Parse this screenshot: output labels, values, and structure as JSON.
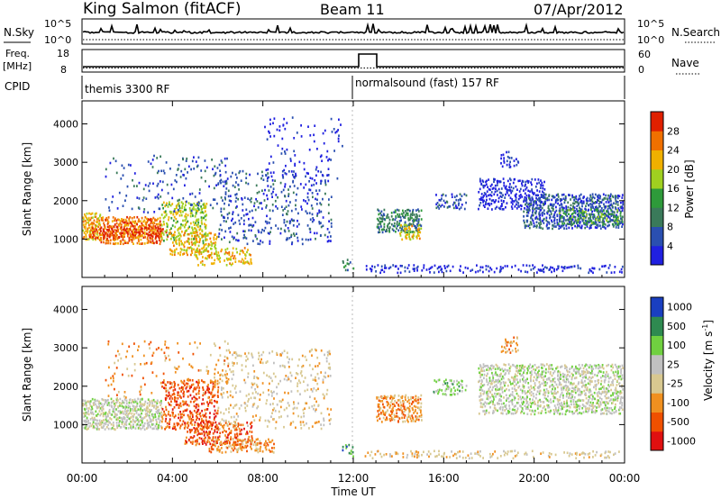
{
  "header": {
    "station": "King Salmon (fitACF)",
    "beam": "Beam 11",
    "date": "07/Apr/2012"
  },
  "nsky_panel": {
    "left_label": "N.Sky",
    "right_label": "N.Search",
    "left_ticks": [
      "10^5",
      "10^0"
    ],
    "right_ticks": [
      "10^5",
      "10^0"
    ]
  },
  "freq_panel": {
    "left_label_1": "Freq.",
    "left_label_2": "[MHz]",
    "right_label": "Nave",
    "left_ticks": [
      "18",
      "8"
    ],
    "right_ticks": [
      "60",
      "0"
    ]
  },
  "cpid_panel": {
    "label": "CPID",
    "segments": [
      {
        "name": "themis 3300 RF",
        "start_hour": 0,
        "end_hour": 12
      },
      {
        "name": "normalsound (fast) 157 RF",
        "start_hour": 12,
        "end_hour": 24
      }
    ]
  },
  "colors": {
    "power": [
      "#2020e0",
      "#2a4fb0",
      "#3a7a5a",
      "#2e9a3a",
      "#a0d020",
      "#f0b000",
      "#f07000",
      "#e02000"
    ],
    "velocity": [
      "#e01010",
      "#f05000",
      "#f09020",
      "#d8c890",
      "#c0c0c0",
      "#70d040",
      "#2e8a50",
      "#1a3fc0"
    ]
  },
  "chart_data": [
    {
      "type": "heatmap",
      "name": "power",
      "x_unit": "hours UT",
      "xlim": [
        0,
        24
      ],
      "ylim": [
        0,
        4600
      ],
      "ylabel": "Slant Range [km]",
      "yticks": [
        "1000",
        "2000",
        "3000",
        "4000"
      ],
      "colorbar": {
        "label": "Power [dB]",
        "ticks": [
          "28",
          "24",
          "20",
          "16",
          "12",
          "8",
          "4"
        ]
      },
      "scatter_regions": [
        {
          "t0": 0.0,
          "t1": 0.8,
          "r0": 1000,
          "r1": 1700,
          "level": 5,
          "density": 0.95
        },
        {
          "t0": 0.8,
          "t1": 3.5,
          "r0": 900,
          "r1": 1600,
          "level": 6,
          "density": 0.9
        },
        {
          "t0": 0.3,
          "t1": 3.8,
          "r0": 1050,
          "r1": 1350,
          "level": 7,
          "density": 0.6
        },
        {
          "t0": 3.5,
          "t1": 5.5,
          "r0": 900,
          "r1": 2000,
          "level": 4,
          "density": 0.6
        },
        {
          "t0": 3.8,
          "t1": 6.0,
          "r0": 600,
          "r1": 1200,
          "level": 5,
          "density": 0.55
        },
        {
          "t0": 5.0,
          "t1": 7.5,
          "r0": 350,
          "r1": 800,
          "level": 5,
          "density": 0.55
        },
        {
          "t0": 6.0,
          "t1": 11.0,
          "r0": 900,
          "r1": 2800,
          "level": 1,
          "density": 0.2
        },
        {
          "t0": 1.0,
          "t1": 6.5,
          "r0": 1700,
          "r1": 3200,
          "level": 1,
          "density": 0.12
        },
        {
          "t0": 8.0,
          "t1": 11.5,
          "r0": 2400,
          "r1": 4200,
          "level": 0,
          "density": 0.08
        },
        {
          "t0": 11.5,
          "t1": 12.0,
          "r0": 200,
          "r1": 500,
          "level": 2,
          "density": 0.5
        },
        {
          "t0": 13.0,
          "t1": 15.0,
          "r0": 1200,
          "r1": 1800,
          "level": 2,
          "density": 0.7
        },
        {
          "t0": 14.0,
          "t1": 15.0,
          "r0": 1000,
          "r1": 1400,
          "level": 5,
          "density": 0.5
        },
        {
          "t0": 15.5,
          "t1": 17.0,
          "r0": 1800,
          "r1": 2200,
          "level": 1,
          "density": 0.4
        },
        {
          "t0": 17.5,
          "t1": 20.5,
          "r0": 1800,
          "r1": 2600,
          "level": 0,
          "density": 0.55
        },
        {
          "t0": 19.5,
          "t1": 23.9,
          "r0": 1300,
          "r1": 2200,
          "level": 1,
          "density": 0.8
        },
        {
          "t0": 21.0,
          "t1": 23.9,
          "r0": 1400,
          "r1": 1800,
          "level": 3,
          "density": 0.5
        },
        {
          "t0": 12.5,
          "t1": 23.9,
          "r0": 150,
          "r1": 350,
          "level": 0,
          "density": 0.3
        },
        {
          "t0": 18.5,
          "t1": 19.3,
          "r0": 2900,
          "r1": 3300,
          "level": 0,
          "density": 0.4
        }
      ]
    },
    {
      "type": "heatmap",
      "name": "velocity",
      "x_unit": "hours UT",
      "xlim": [
        0,
        24
      ],
      "ylim": [
        0,
        4600
      ],
      "ylabel": "Slant Range [km]",
      "xlabel": "Time UT",
      "xticks": [
        "00:00",
        "04:00",
        "08:00",
        "12:00",
        "16:00",
        "20:00",
        "00:00"
      ],
      "yticks": [
        "1000",
        "2000",
        "3000",
        "4000"
      ],
      "colorbar": {
        "label": "Velocity [m s",
        "label_sup": "-1",
        "label_end": "]",
        "ticks": [
          "1000",
          "500",
          "100",
          "25",
          "-25",
          "-100",
          "-500",
          "-1000"
        ]
      },
      "scatter_regions": [
        {
          "t0": 0.0,
          "t1": 3.5,
          "r0": 900,
          "r1": 1700,
          "level": 4,
          "density": 0.9
        },
        {
          "t0": 3.5,
          "t1": 6.0,
          "r0": 900,
          "r1": 2200,
          "level": 1,
          "density": 0.55
        },
        {
          "t0": 4.5,
          "t1": 7.5,
          "r0": 500,
          "r1": 1100,
          "level": 1,
          "density": 0.55
        },
        {
          "t0": 5.5,
          "t1": 8.5,
          "r0": 300,
          "r1": 650,
          "level": 2,
          "density": 0.6
        },
        {
          "t0": 6.0,
          "t1": 11.0,
          "r0": 900,
          "r1": 3000,
          "level": 3,
          "density": 0.18
        },
        {
          "t0": 1.0,
          "t1": 6.5,
          "r0": 1700,
          "r1": 3200,
          "level": 2,
          "density": 0.1
        },
        {
          "t0": 11.5,
          "t1": 12.0,
          "r0": 200,
          "r1": 500,
          "level": 6,
          "density": 0.5
        },
        {
          "t0": 13.0,
          "t1": 15.0,
          "r0": 1100,
          "r1": 1800,
          "level": 2,
          "density": 0.75
        },
        {
          "t0": 15.5,
          "t1": 17.0,
          "r0": 1800,
          "r1": 2200,
          "level": 5,
          "density": 0.4
        },
        {
          "t0": 17.5,
          "t1": 23.9,
          "r0": 1300,
          "r1": 2600,
          "level": 4,
          "density": 0.7
        },
        {
          "t0": 12.5,
          "t1": 23.9,
          "r0": 150,
          "r1": 350,
          "level": 3,
          "density": 0.3
        },
        {
          "t0": 18.5,
          "t1": 19.3,
          "r0": 2900,
          "r1": 3300,
          "level": 2,
          "density": 0.4
        }
      ]
    }
  ]
}
